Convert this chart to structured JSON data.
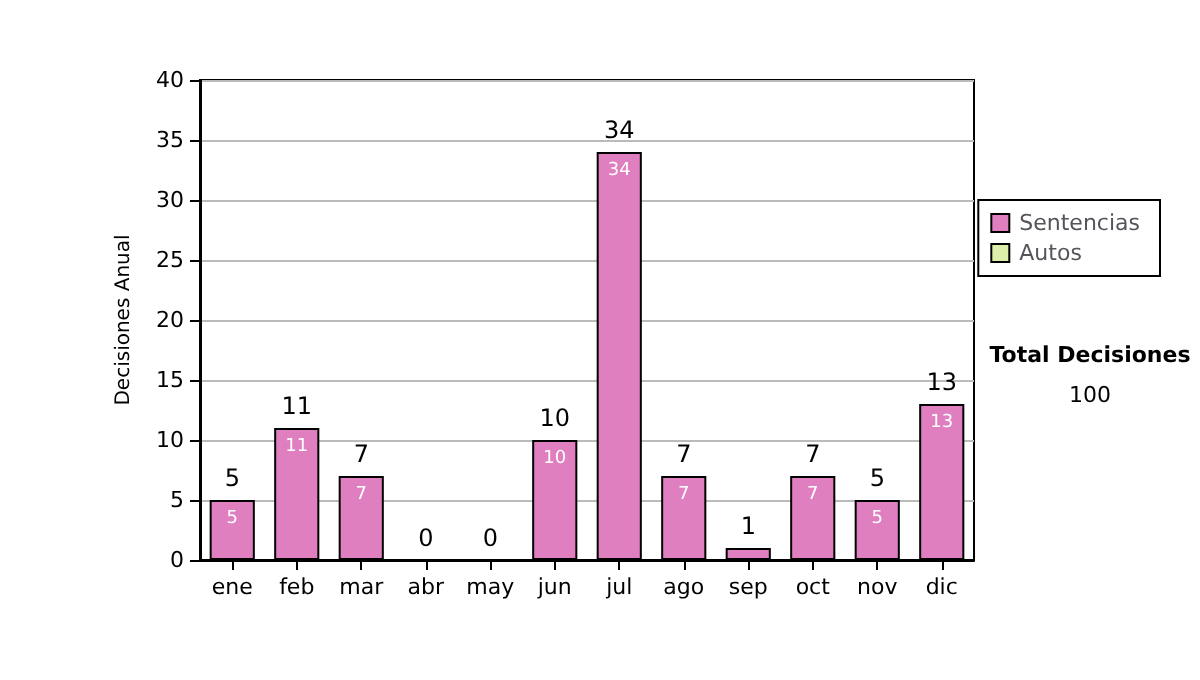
{
  "chart_data": {
    "type": "bar",
    "stacked": true,
    "ylabel": "Decisiones Anual",
    "categories": [
      "ene",
      "feb",
      "mar",
      "abr",
      "may",
      "jun",
      "jul",
      "ago",
      "sep",
      "oct",
      "nov",
      "dic"
    ],
    "series": [
      {
        "name": "Sentencias",
        "color": "#df7fc0",
        "values": [
          5,
          11,
          7,
          0,
          0,
          10,
          34,
          7,
          1,
          7,
          5,
          13
        ],
        "value_labels": [
          "5",
          "11",
          "7",
          null,
          null,
          "10",
          "34",
          "7",
          null,
          "7",
          "5",
          "13"
        ]
      },
      {
        "name": "Autos",
        "color": "#ddeeaa",
        "values": [
          0,
          0,
          0,
          0,
          0,
          0,
          0,
          0,
          0,
          0,
          0,
          0
        ]
      }
    ],
    "totals": [
      "5",
      "11",
      "7",
      "0",
      "0",
      "10",
      "34",
      "7",
      "1",
      "7",
      "5",
      "13"
    ],
    "ylim": [
      0,
      40
    ],
    "yticks": [
      0,
      5,
      10,
      15,
      20,
      25,
      30,
      35,
      40
    ],
    "grid": "y",
    "legend": "right",
    "annotations": [
      "Total Decisiones",
      "100"
    ]
  }
}
